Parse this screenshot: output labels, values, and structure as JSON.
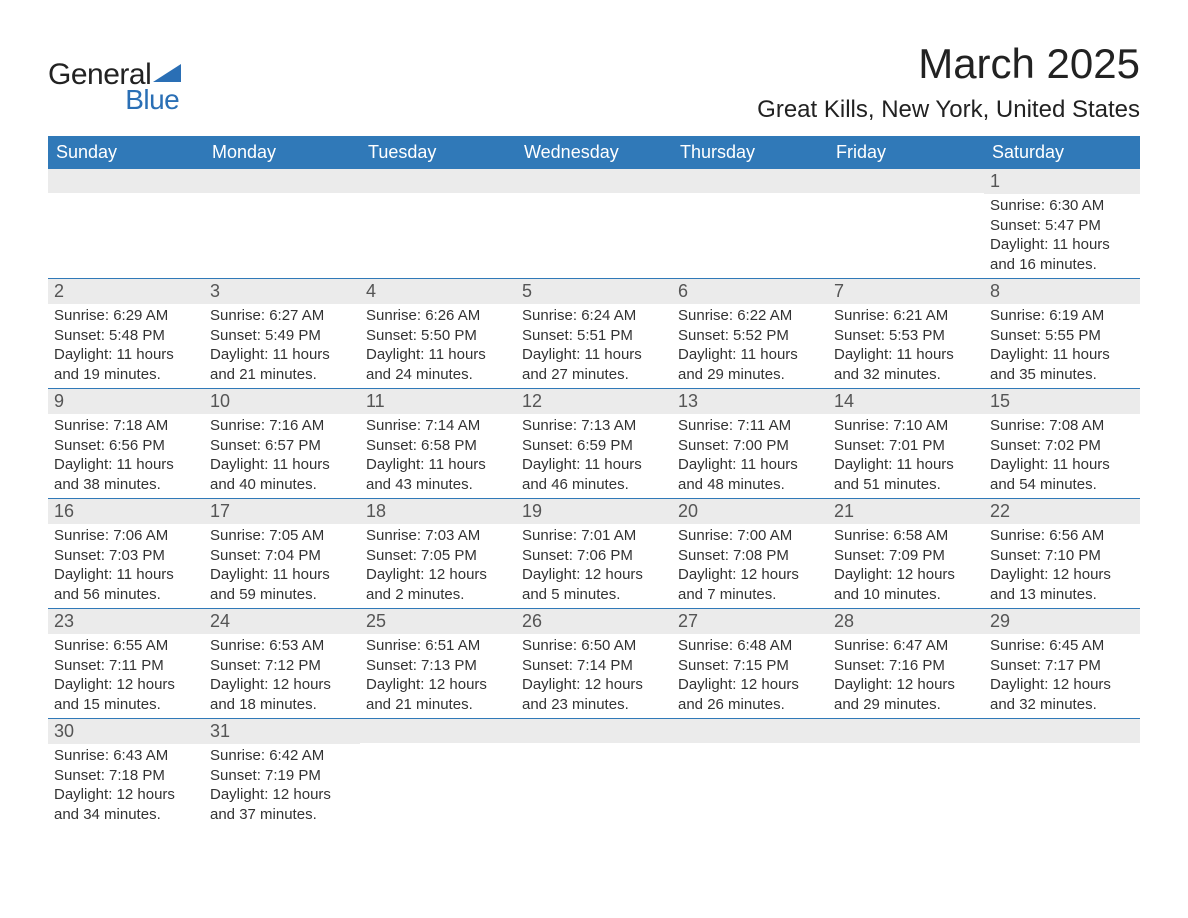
{
  "logo": {
    "text1": "General",
    "text2": "Blue",
    "triangle_color": "#2a6fb5"
  },
  "title": "March 2025",
  "location": "Great Kills, New York, United States",
  "colors": {
    "header_bg": "#3079b8",
    "header_fg": "#ffffff",
    "row_border": "#3079b8",
    "daynum_bg": "#ebebeb",
    "text": "#333333",
    "background": "#ffffff"
  },
  "weekdays": [
    "Sunday",
    "Monday",
    "Tuesday",
    "Wednesday",
    "Thursday",
    "Friday",
    "Saturday"
  ],
  "weeks": [
    [
      {
        "day": "",
        "sunrise": "",
        "sunset": "",
        "daylight": ""
      },
      {
        "day": "",
        "sunrise": "",
        "sunset": "",
        "daylight": ""
      },
      {
        "day": "",
        "sunrise": "",
        "sunset": "",
        "daylight": ""
      },
      {
        "day": "",
        "sunrise": "",
        "sunset": "",
        "daylight": ""
      },
      {
        "day": "",
        "sunrise": "",
        "sunset": "",
        "daylight": ""
      },
      {
        "day": "",
        "sunrise": "",
        "sunset": "",
        "daylight": ""
      },
      {
        "day": "1",
        "sunrise": "Sunrise: 6:30 AM",
        "sunset": "Sunset: 5:47 PM",
        "daylight": "Daylight: 11 hours and 16 minutes."
      }
    ],
    [
      {
        "day": "2",
        "sunrise": "Sunrise: 6:29 AM",
        "sunset": "Sunset: 5:48 PM",
        "daylight": "Daylight: 11 hours and 19 minutes."
      },
      {
        "day": "3",
        "sunrise": "Sunrise: 6:27 AM",
        "sunset": "Sunset: 5:49 PM",
        "daylight": "Daylight: 11 hours and 21 minutes."
      },
      {
        "day": "4",
        "sunrise": "Sunrise: 6:26 AM",
        "sunset": "Sunset: 5:50 PM",
        "daylight": "Daylight: 11 hours and 24 minutes."
      },
      {
        "day": "5",
        "sunrise": "Sunrise: 6:24 AM",
        "sunset": "Sunset: 5:51 PM",
        "daylight": "Daylight: 11 hours and 27 minutes."
      },
      {
        "day": "6",
        "sunrise": "Sunrise: 6:22 AM",
        "sunset": "Sunset: 5:52 PM",
        "daylight": "Daylight: 11 hours and 29 minutes."
      },
      {
        "day": "7",
        "sunrise": "Sunrise: 6:21 AM",
        "sunset": "Sunset: 5:53 PM",
        "daylight": "Daylight: 11 hours and 32 minutes."
      },
      {
        "day": "8",
        "sunrise": "Sunrise: 6:19 AM",
        "sunset": "Sunset: 5:55 PM",
        "daylight": "Daylight: 11 hours and 35 minutes."
      }
    ],
    [
      {
        "day": "9",
        "sunrise": "Sunrise: 7:18 AM",
        "sunset": "Sunset: 6:56 PM",
        "daylight": "Daylight: 11 hours and 38 minutes."
      },
      {
        "day": "10",
        "sunrise": "Sunrise: 7:16 AM",
        "sunset": "Sunset: 6:57 PM",
        "daylight": "Daylight: 11 hours and 40 minutes."
      },
      {
        "day": "11",
        "sunrise": "Sunrise: 7:14 AM",
        "sunset": "Sunset: 6:58 PM",
        "daylight": "Daylight: 11 hours and 43 minutes."
      },
      {
        "day": "12",
        "sunrise": "Sunrise: 7:13 AM",
        "sunset": "Sunset: 6:59 PM",
        "daylight": "Daylight: 11 hours and 46 minutes."
      },
      {
        "day": "13",
        "sunrise": "Sunrise: 7:11 AM",
        "sunset": "Sunset: 7:00 PM",
        "daylight": "Daylight: 11 hours and 48 minutes."
      },
      {
        "day": "14",
        "sunrise": "Sunrise: 7:10 AM",
        "sunset": "Sunset: 7:01 PM",
        "daylight": "Daylight: 11 hours and 51 minutes."
      },
      {
        "day": "15",
        "sunrise": "Sunrise: 7:08 AM",
        "sunset": "Sunset: 7:02 PM",
        "daylight": "Daylight: 11 hours and 54 minutes."
      }
    ],
    [
      {
        "day": "16",
        "sunrise": "Sunrise: 7:06 AM",
        "sunset": "Sunset: 7:03 PM",
        "daylight": "Daylight: 11 hours and 56 minutes."
      },
      {
        "day": "17",
        "sunrise": "Sunrise: 7:05 AM",
        "sunset": "Sunset: 7:04 PM",
        "daylight": "Daylight: 11 hours and 59 minutes."
      },
      {
        "day": "18",
        "sunrise": "Sunrise: 7:03 AM",
        "sunset": "Sunset: 7:05 PM",
        "daylight": "Daylight: 12 hours and 2 minutes."
      },
      {
        "day": "19",
        "sunrise": "Sunrise: 7:01 AM",
        "sunset": "Sunset: 7:06 PM",
        "daylight": "Daylight: 12 hours and 5 minutes."
      },
      {
        "day": "20",
        "sunrise": "Sunrise: 7:00 AM",
        "sunset": "Sunset: 7:08 PM",
        "daylight": "Daylight: 12 hours and 7 minutes."
      },
      {
        "day": "21",
        "sunrise": "Sunrise: 6:58 AM",
        "sunset": "Sunset: 7:09 PM",
        "daylight": "Daylight: 12 hours and 10 minutes."
      },
      {
        "day": "22",
        "sunrise": "Sunrise: 6:56 AM",
        "sunset": "Sunset: 7:10 PM",
        "daylight": "Daylight: 12 hours and 13 minutes."
      }
    ],
    [
      {
        "day": "23",
        "sunrise": "Sunrise: 6:55 AM",
        "sunset": "Sunset: 7:11 PM",
        "daylight": "Daylight: 12 hours and 15 minutes."
      },
      {
        "day": "24",
        "sunrise": "Sunrise: 6:53 AM",
        "sunset": "Sunset: 7:12 PM",
        "daylight": "Daylight: 12 hours and 18 minutes."
      },
      {
        "day": "25",
        "sunrise": "Sunrise: 6:51 AM",
        "sunset": "Sunset: 7:13 PM",
        "daylight": "Daylight: 12 hours and 21 minutes."
      },
      {
        "day": "26",
        "sunrise": "Sunrise: 6:50 AM",
        "sunset": "Sunset: 7:14 PM",
        "daylight": "Daylight: 12 hours and 23 minutes."
      },
      {
        "day": "27",
        "sunrise": "Sunrise: 6:48 AM",
        "sunset": "Sunset: 7:15 PM",
        "daylight": "Daylight: 12 hours and 26 minutes."
      },
      {
        "day": "28",
        "sunrise": "Sunrise: 6:47 AM",
        "sunset": "Sunset: 7:16 PM",
        "daylight": "Daylight: 12 hours and 29 minutes."
      },
      {
        "day": "29",
        "sunrise": "Sunrise: 6:45 AM",
        "sunset": "Sunset: 7:17 PM",
        "daylight": "Daylight: 12 hours and 32 minutes."
      }
    ],
    [
      {
        "day": "30",
        "sunrise": "Sunrise: 6:43 AM",
        "sunset": "Sunset: 7:18 PM",
        "daylight": "Daylight: 12 hours and 34 minutes."
      },
      {
        "day": "31",
        "sunrise": "Sunrise: 6:42 AM",
        "sunset": "Sunset: 7:19 PM",
        "daylight": "Daylight: 12 hours and 37 minutes."
      },
      {
        "day": "",
        "sunrise": "",
        "sunset": "",
        "daylight": ""
      },
      {
        "day": "",
        "sunrise": "",
        "sunset": "",
        "daylight": ""
      },
      {
        "day": "",
        "sunrise": "",
        "sunset": "",
        "daylight": ""
      },
      {
        "day": "",
        "sunrise": "",
        "sunset": "",
        "daylight": ""
      },
      {
        "day": "",
        "sunrise": "",
        "sunset": "",
        "daylight": ""
      }
    ]
  ]
}
